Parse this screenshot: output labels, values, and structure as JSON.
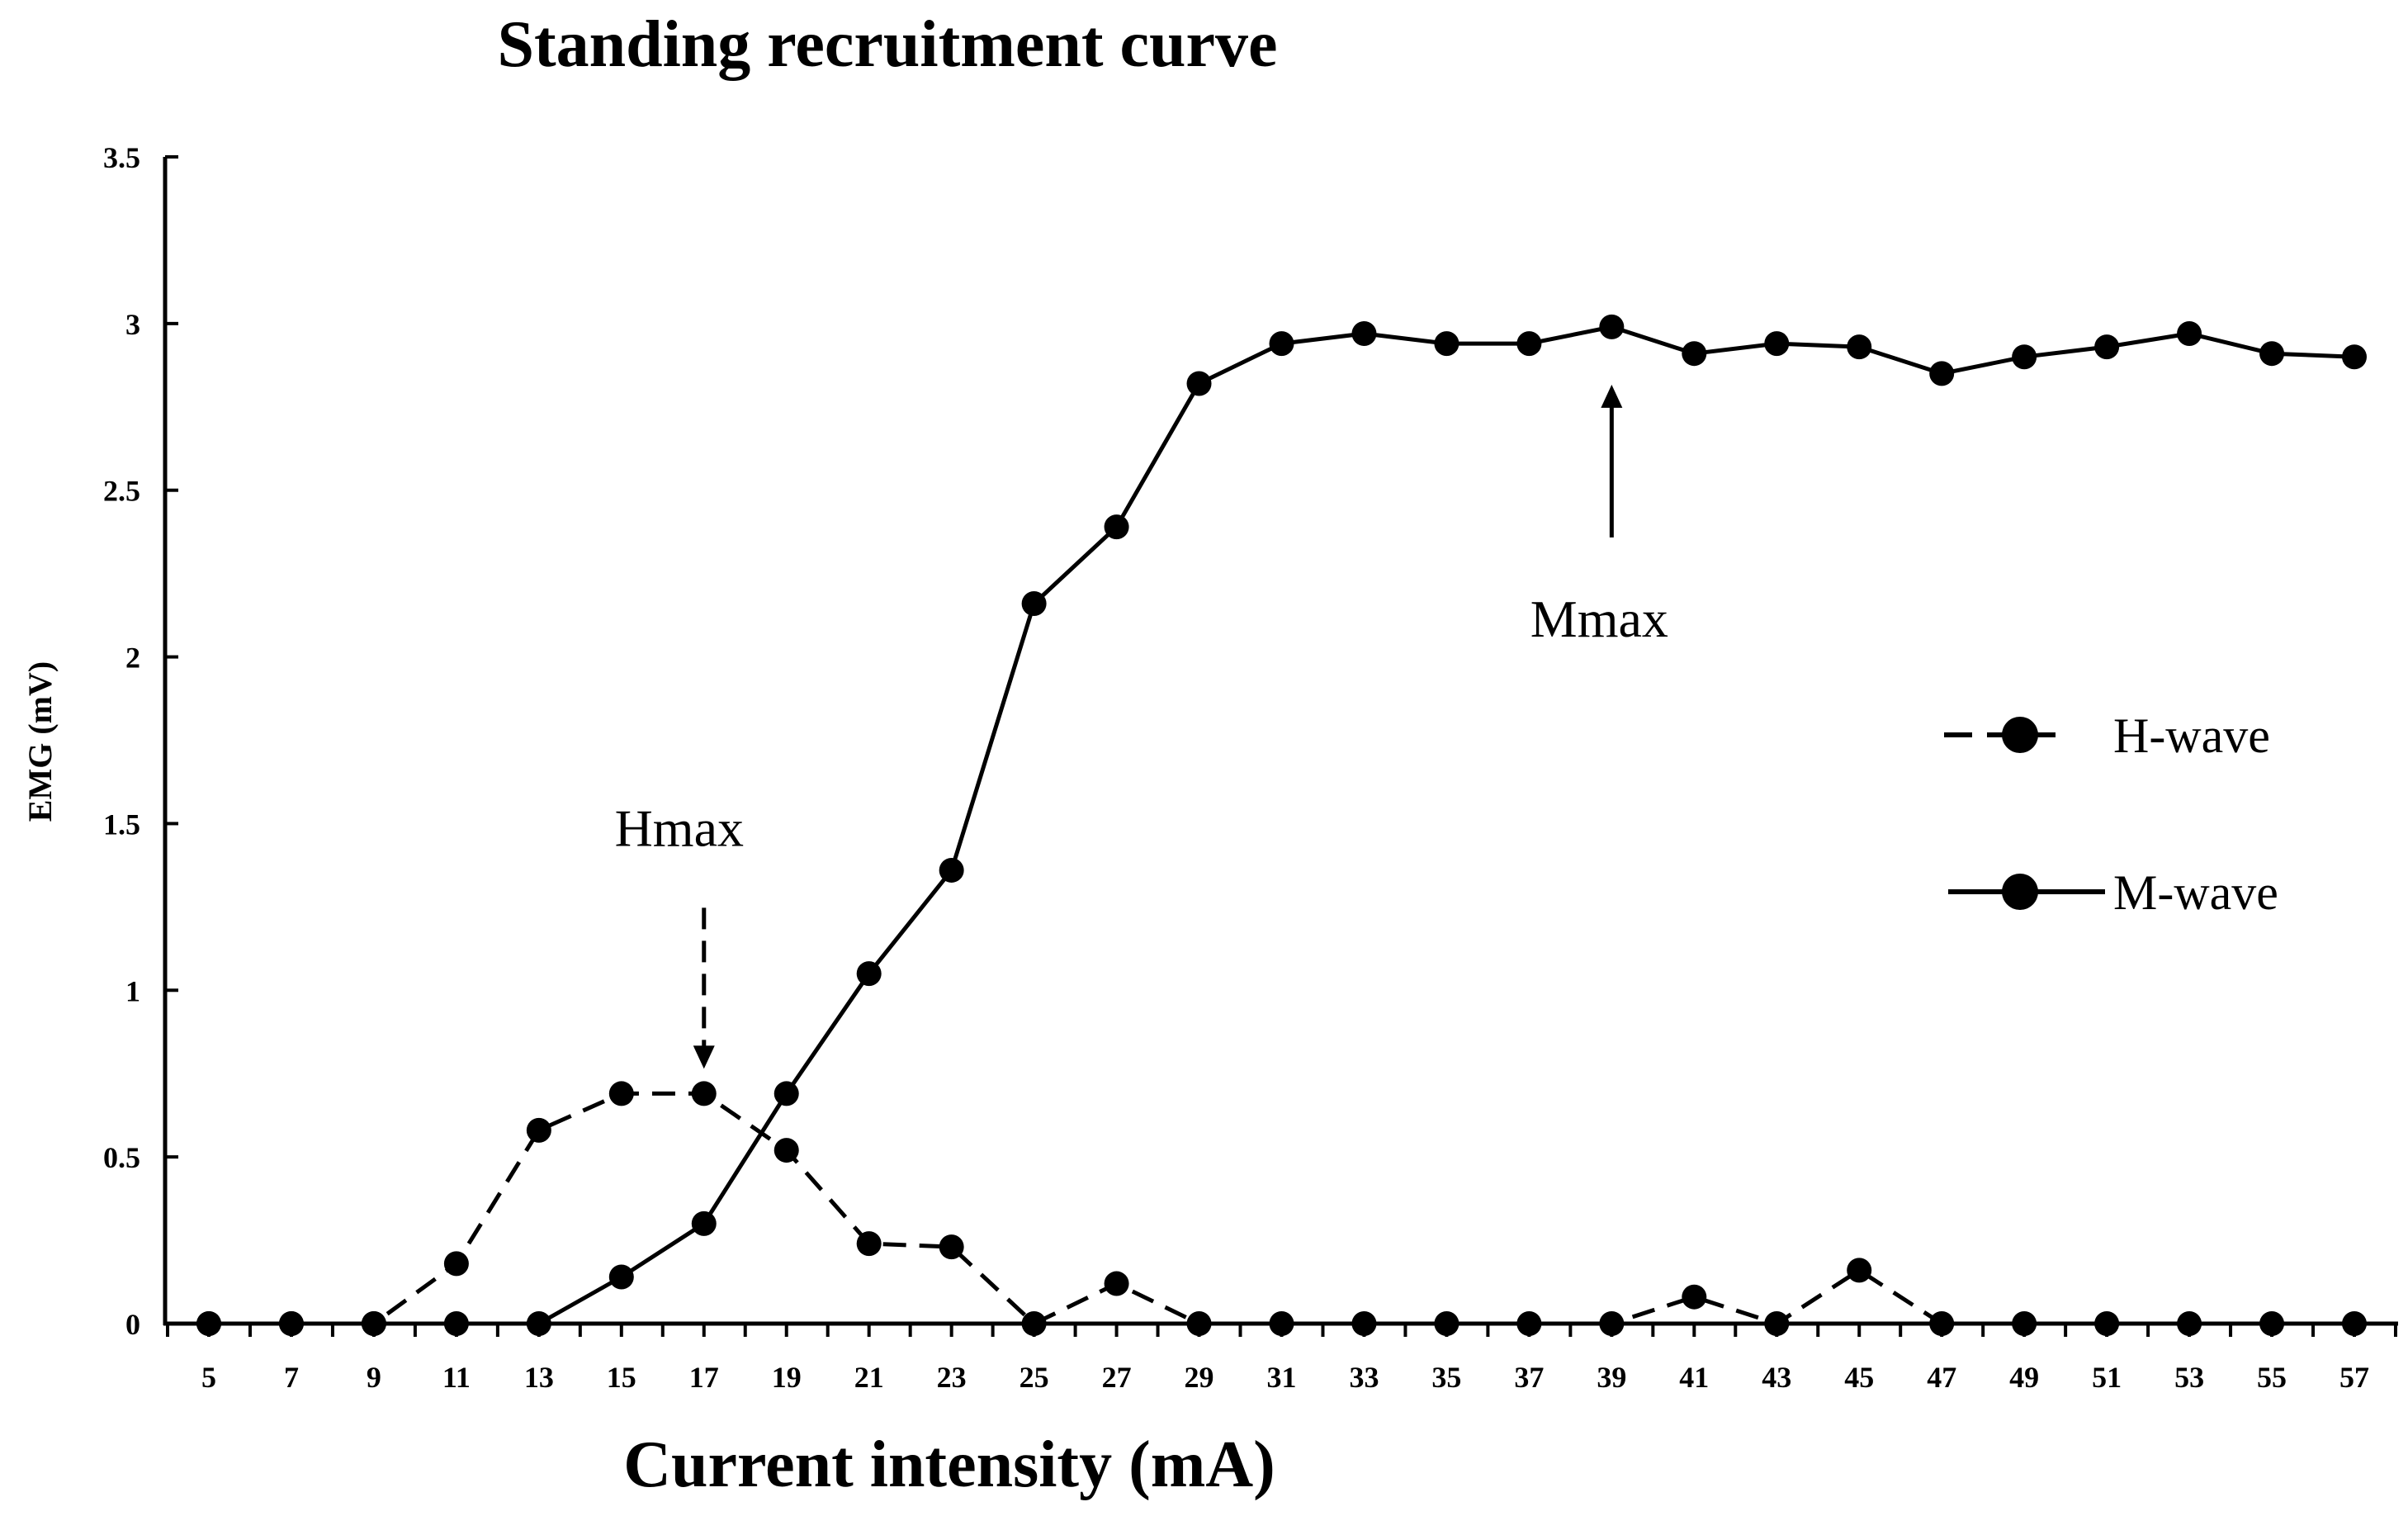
{
  "chart_data": {
    "type": "line",
    "title": "Standing recruitment curve",
    "xlabel": "Current intensity (mA)",
    "ylabel": "EMG (mV)",
    "x": [
      5,
      7,
      9,
      11,
      13,
      15,
      17,
      19,
      21,
      23,
      25,
      27,
      29,
      31,
      33,
      35,
      37,
      39,
      41,
      43,
      45,
      47,
      49,
      51,
      53,
      55,
      57
    ],
    "xticks": [
      "5",
      "7",
      "9",
      "11",
      "13",
      "15",
      "17",
      "19",
      "21",
      "23",
      "25",
      "27",
      "29",
      "31",
      "33",
      "35",
      "37",
      "39",
      "41",
      "43",
      "45",
      "47",
      "49",
      "51",
      "53",
      "55",
      "57"
    ],
    "yticks": [
      "0",
      "0.5",
      "1",
      "1.5",
      "2",
      "2.5",
      "3",
      "3.5"
    ],
    "ylim": [
      0,
      3.5
    ],
    "grid": false,
    "legend_position": "right",
    "series": [
      {
        "name": "H-wave",
        "style": "dashed",
        "color": "#000000",
        "values": [
          0,
          0,
          0,
          0.18,
          0.58,
          0.69,
          0.69,
          0.52,
          0.24,
          0.23,
          0,
          0.12,
          0,
          0,
          0,
          0,
          0,
          0,
          0.08,
          0,
          0.16,
          0,
          0,
          0,
          0,
          0,
          0
        ]
      },
      {
        "name": "M-wave",
        "style": "solid",
        "color": "#000000",
        "values": [
          0,
          0,
          0,
          0,
          0,
          0.14,
          0.3,
          0.69,
          1.05,
          1.36,
          2.16,
          2.39,
          2.82,
          2.94,
          2.97,
          2.94,
          2.94,
          2.99,
          2.91,
          2.94,
          2.93,
          2.85,
          2.9,
          2.93,
          2.97,
          2.91,
          2.9
        ]
      }
    ],
    "annotations": [
      {
        "text": "Hmax",
        "x": 17,
        "y": 0.69,
        "arrow": "down",
        "arrow_style": "dashed"
      },
      {
        "text": "Mmax",
        "x": 39,
        "y": 2.99,
        "arrow": "up",
        "arrow_style": "solid"
      }
    ]
  }
}
